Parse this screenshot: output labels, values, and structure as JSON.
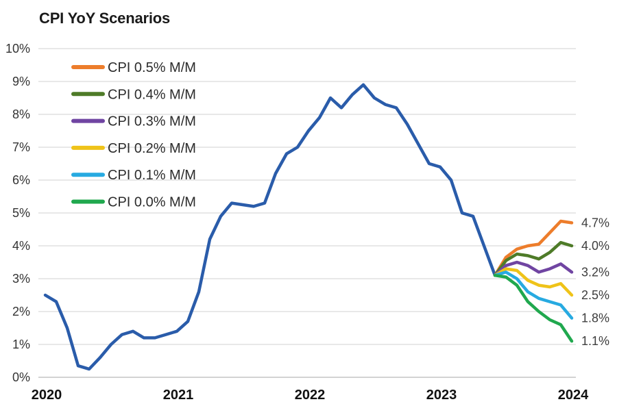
{
  "chart_data": {
    "type": "line",
    "title": "CPI YoY Scenarios",
    "grid": true,
    "legend_position": "top-left",
    "y_axis": {
      "min": 0,
      "max": 10,
      "step": 1,
      "tick_suffix": "%",
      "tick_labels": [
        "0%",
        "1%",
        "2%",
        "3%",
        "4%",
        "5%",
        "6%",
        "7%",
        "8%",
        "9%",
        "10%"
      ]
    },
    "x_axis": {
      "tick_labels": [
        "2020",
        "2021",
        "2022",
        "2023",
        "2024"
      ],
      "frequency": "monthly",
      "months_per_tick": 12
    },
    "history": {
      "name": "CPI YoY",
      "color": "#2A5CAA",
      "start": "2020-01",
      "values": [
        2.5,
        2.3,
        1.5,
        0.35,
        0.25,
        0.6,
        1.0,
        1.3,
        1.4,
        1.2,
        1.2,
        1.3,
        1.4,
        1.7,
        2.6,
        4.2,
        4.9,
        5.3,
        5.25,
        5.2,
        5.3,
        6.2,
        6.8,
        7.0,
        7.5,
        7.9,
        8.5,
        8.2,
        8.6,
        8.9,
        8.5,
        8.3,
        8.2,
        7.7,
        7.1,
        6.5,
        6.4,
        6.0,
        5.0,
        4.9,
        4.0,
        3.1
      ]
    },
    "scenarios": {
      "start": "2023-06",
      "series": [
        {
          "name": "CPI 0.5% M/M",
          "color": "#ED7D2B",
          "end_label": "4.7%",
          "values": [
            3.1,
            3.65,
            3.9,
            4.0,
            4.05,
            4.4,
            4.75,
            4.7
          ]
        },
        {
          "name": "CPI 0.4% M/M",
          "color": "#4E7B28",
          "end_label": "4.0%",
          "values": [
            3.1,
            3.55,
            3.75,
            3.7,
            3.6,
            3.8,
            4.1,
            4.0
          ]
        },
        {
          "name": "CPI 0.3% M/M",
          "color": "#7045A2",
          "end_label": "3.2%",
          "values": [
            3.1,
            3.4,
            3.5,
            3.4,
            3.2,
            3.3,
            3.45,
            3.2
          ]
        },
        {
          "name": "CPI 0.2% M/M",
          "color": "#EFC319",
          "end_label": "2.5%",
          "values": [
            3.1,
            3.3,
            3.25,
            2.95,
            2.8,
            2.75,
            2.85,
            2.5
          ]
        },
        {
          "name": "CPI 0.1% M/M",
          "color": "#27AAE1",
          "end_label": "1.8%",
          "values": [
            3.1,
            3.2,
            3.0,
            2.6,
            2.4,
            2.3,
            2.2,
            1.8
          ]
        },
        {
          "name": "CPI 0.0% M/M",
          "color": "#20A84E",
          "end_label": "1.1%",
          "values": [
            3.1,
            3.05,
            2.8,
            2.3,
            2.0,
            1.75,
            1.6,
            1.1
          ]
        }
      ]
    },
    "style_colors": {
      "gridline": "#D9D9D9",
      "baseline": "#C3C3C3",
      "axis_text": "#333333",
      "year_text": "#111111",
      "end_label_text": "#3D3D3D",
      "legend_text": "#2B2B2B",
      "title_text": "#1A1A1A"
    }
  }
}
